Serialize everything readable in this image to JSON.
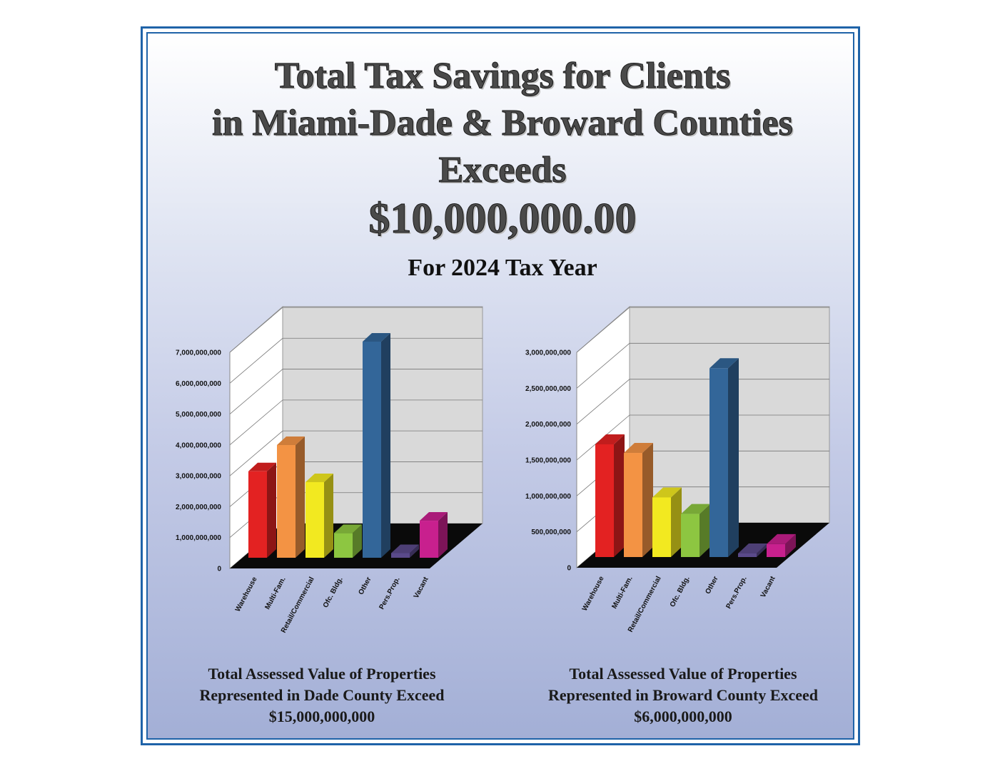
{
  "title": {
    "line1": "Total Tax Savings for Clients",
    "line2": "in Miami-Dade & Broward Counties",
    "line3": "Exceeds",
    "amount": "$10,000,000.00",
    "subtitle": "For 2024 Tax Year"
  },
  "colors": {
    "frame": "#1f63a8",
    "bars": [
      "#e32222",
      "#f39344",
      "#f2e920",
      "#8dc641",
      "#336699",
      "#5a4a8a",
      "#c8208e"
    ]
  },
  "chart_data": [
    {
      "type": "bar",
      "categories": [
        "Warehouse",
        "Multi-Fam.",
        "Retail/Commercial",
        "Ofc. Bldg.",
        "Other",
        "Pers.Prop.",
        "Vacant"
      ],
      "values": [
        2800000000,
        3650000000,
        2450000000,
        800000000,
        7000000000,
        150000000,
        1200000000
      ],
      "yticks": [
        "0",
        "1,000,000,000",
        "2,000,000,000",
        "3,000,000,000",
        "4,000,000,000",
        "5,000,000,000",
        "6,000,000,000",
        "7,000,000,000"
      ],
      "ylim": [
        0,
        7000000000
      ],
      "grid": true,
      "caption": [
        "Total Assessed Value of Properties",
        "Represented in Dade County Exceed",
        "$15,000,000,000"
      ]
    },
    {
      "type": "bar",
      "categories": [
        "Warehouse",
        "Multi-Fam.",
        "Retail/Commercial",
        "Ofc. Bldg.",
        "Other",
        "Pers.Prop.",
        "Vacant"
      ],
      "values": [
        1570000000,
        1450000000,
        830000000,
        600000000,
        2630000000,
        50000000,
        180000000
      ],
      "yticks": [
        "0",
        "500,000,000",
        "1,000,000,000",
        "1,500,000,000",
        "2,000,000,000",
        "2,500,000,000",
        "3,000,000,000"
      ],
      "ylim": [
        0,
        3000000000
      ],
      "grid": true,
      "caption": [
        "Total Assessed Value of Properties",
        "Represented in Broward County Exceed",
        "$6,000,000,000"
      ]
    }
  ]
}
